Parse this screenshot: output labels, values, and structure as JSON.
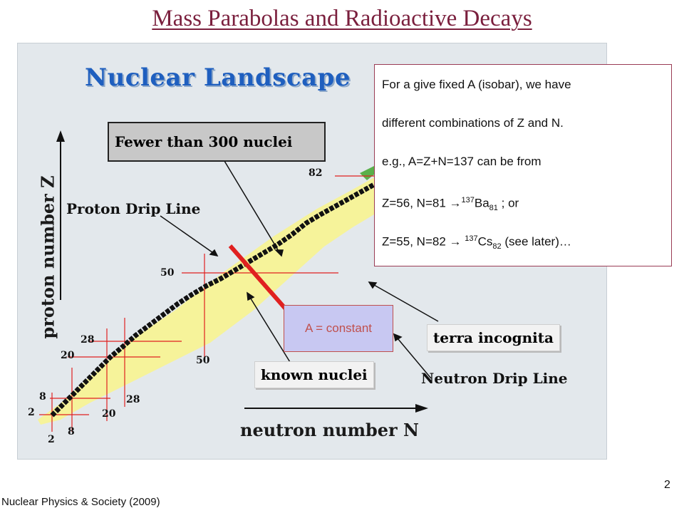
{
  "slide": {
    "title": "Mass Parabolas and Radioactive Decays",
    "footer": "Nuclear Physics & Society (2009)",
    "page_number": "2"
  },
  "landscape": {
    "title": "Nuclear Landscape",
    "z_axis_label": "proton number Z",
    "n_axis_label": "neutron number N",
    "fewer_box": "Fewer than 300 nuclei",
    "proton_drip": "Proton Drip Line",
    "neutron_drip": "Neutron Drip Line",
    "terra": "terra incognita",
    "known": "known nuclei",
    "magic_z": [
      "2",
      "8",
      "20",
      "28",
      "50",
      "82"
    ],
    "magic_n": [
      "2",
      "8",
      "20",
      "28",
      "50"
    ]
  },
  "info": {
    "line1": "For a give fixed A (isobar), we have",
    "line2": "different combinations of Z and N.",
    "line3": "e.g., A=Z+N=137 can be from",
    "line4_pre": "Z=56, N=81 →",
    "line4_sup": "137",
    "line4_el": "Ba",
    "line4_sub": "81",
    "line4_post": " ; or",
    "line5_pre": "Z=55, N=82  → ",
    "line5_sup": "137",
    "line5_el": "Cs",
    "line5_sub": "82",
    "line5_post": " (see later)…"
  },
  "a_constant": "A = constant",
  "colors": {
    "title": "#7a1f3d",
    "band_yellow": "#f6f39a",
    "stable_black": "#111111",
    "magic_red": "#e02020",
    "a_line": "#e02020",
    "a_box_fill": "#c8c8f2"
  }
}
